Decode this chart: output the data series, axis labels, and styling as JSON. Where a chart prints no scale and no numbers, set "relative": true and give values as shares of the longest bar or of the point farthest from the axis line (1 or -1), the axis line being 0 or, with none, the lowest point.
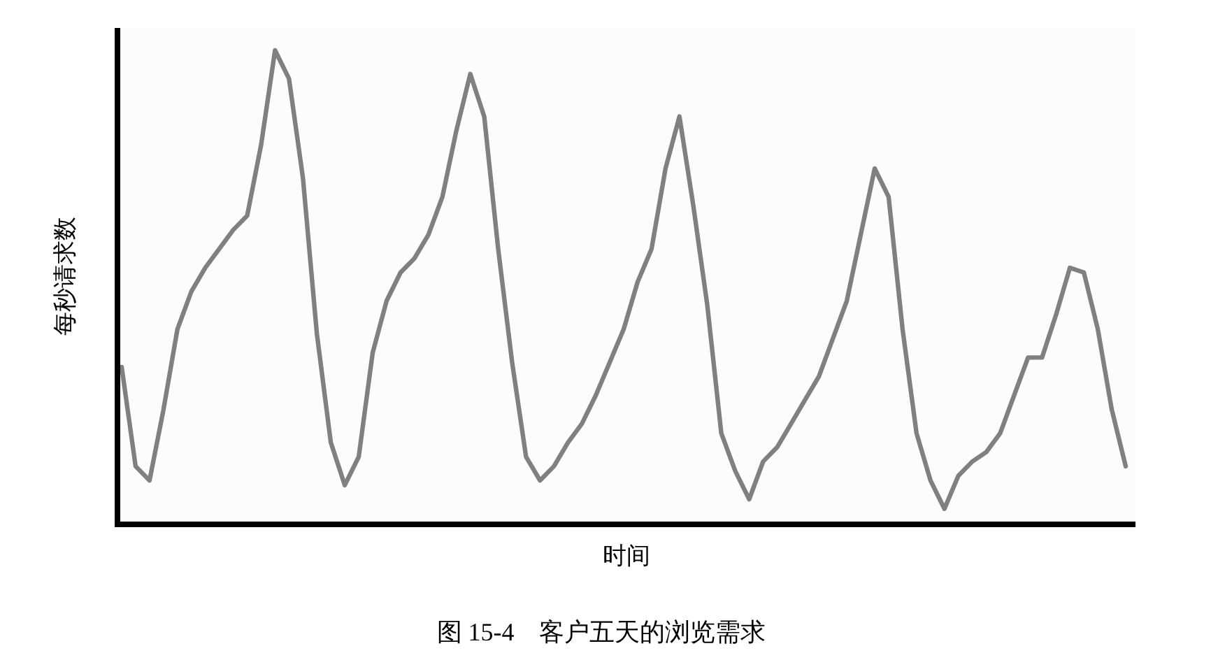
{
  "chart_data": {
    "type": "line",
    "relative": true,
    "title": "图 15-4　客户五天的浏览需求",
    "xlabel": "时间",
    "ylabel": "每秒请求数",
    "marker": "none",
    "line_style": "solid",
    "categories": [
      null,
      null,
      null,
      null,
      null,
      null,
      null,
      null,
      null,
      null,
      null,
      null,
      null,
      null,
      null,
      null,
      null,
      null,
      null,
      null,
      null,
      null,
      null,
      null,
      null,
      null,
      null,
      null,
      null,
      null,
      null,
      null,
      null,
      null,
      null,
      null,
      null,
      null,
      null,
      null,
      null,
      null,
      null,
      null,
      null,
      null,
      null,
      null,
      null,
      null,
      null,
      null,
      null,
      null,
      null,
      null,
      null,
      null,
      null,
      null,
      null,
      null,
      null,
      null,
      null,
      null,
      null,
      null,
      null,
      null,
      null,
      null,
      null
    ],
    "series": [
      {
        "color": "#808080",
        "values": [
          0.33,
          0.12,
          0.09,
          0.24,
          0.41,
          0.49,
          0.54,
          0.58,
          0.62,
          0.65,
          0.8,
          1.0,
          0.94,
          0.73,
          0.4,
          0.17,
          0.08,
          0.14,
          0.36,
          0.47,
          0.53,
          0.56,
          0.61,
          0.69,
          0.83,
          0.95,
          0.86,
          0.58,
          0.34,
          0.14,
          0.09,
          0.12,
          0.17,
          0.21,
          0.27,
          0.34,
          0.41,
          0.51,
          0.58,
          0.75,
          0.86,
          0.67,
          0.46,
          0.19,
          0.11,
          0.05,
          0.13,
          0.16,
          0.21,
          0.26,
          0.31,
          0.39,
          0.47,
          0.61,
          0.75,
          0.69,
          0.41,
          0.19,
          0.09,
          0.03,
          0.1,
          0.13,
          0.15,
          0.19,
          0.27,
          0.35,
          0.35,
          0.44,
          0.54,
          0.53,
          0.41,
          0.24,
          0.12
        ]
      }
    ]
  }
}
